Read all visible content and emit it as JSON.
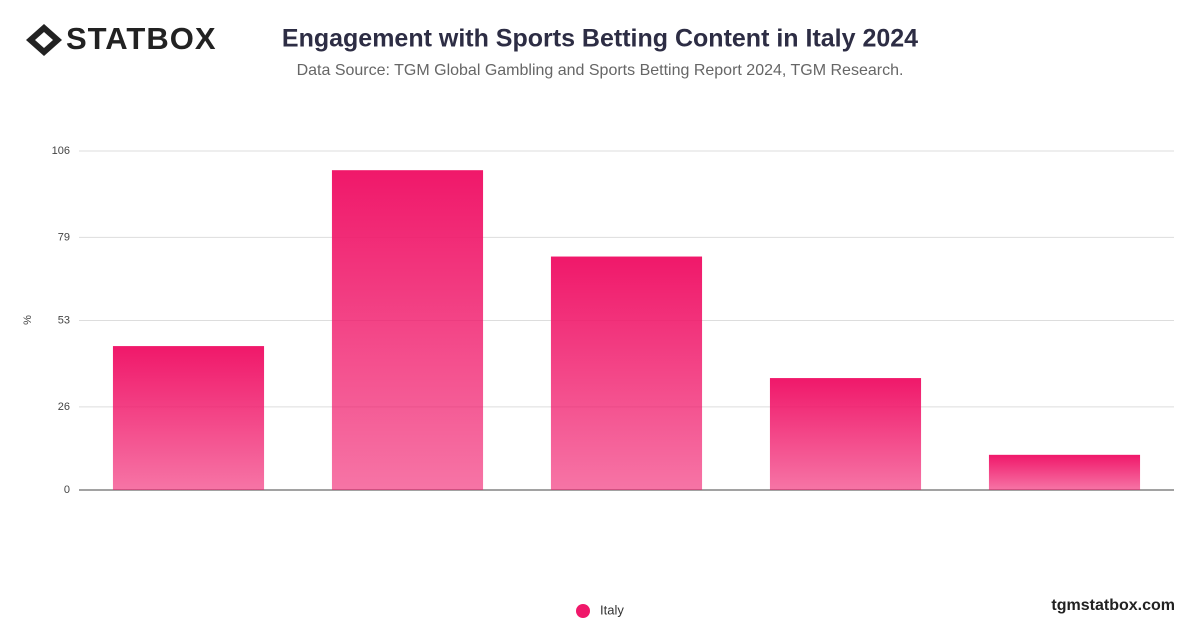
{
  "branding": {
    "logo": "STATBOX",
    "site": "tgmstatbox.com"
  },
  "chart_data": {
    "type": "bar",
    "title": "Engagement with Sports Betting Content in Italy 2024",
    "subtitle": "Data Source: TGM Global Gambling and Sports Betting Report 2024, TGM Research.",
    "y_label": "%",
    "categories": [
      null,
      null,
      null,
      null,
      null
    ],
    "series": [
      {
        "name": "Italy",
        "color": "#f0186a",
        "values": [
          45,
          100,
          73,
          35,
          11
        ]
      }
    ],
    "ylim": [
      0,
      106
    ],
    "yticks": [
      0,
      26,
      53,
      79,
      106
    ],
    "grid": true,
    "legend": "bottom"
  }
}
